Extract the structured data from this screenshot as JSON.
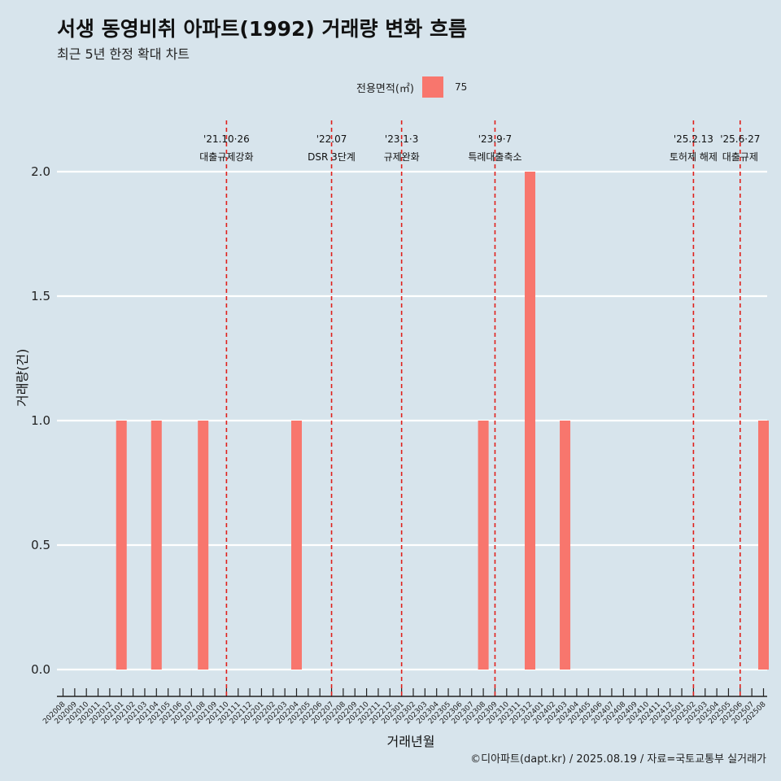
{
  "header": {
    "title": "서생 동영비취 아파트(1992) 거래량 변화 흐름",
    "subtitle": "최근 5년 한정 확대 차트"
  },
  "legend": {
    "title": "전용면적(㎡)",
    "items": [
      {
        "label": "75",
        "color": "#f8766d"
      }
    ]
  },
  "caption": "©디아파트(dapt.kr) / 2025.08.19 / 자료=국토교통부 실거래가",
  "chart_data": {
    "type": "bar",
    "title": "서생 동영비취 아파트(1992) 거래량 변화 흐름",
    "subtitle": "최근 5년 한정 확대 차트",
    "xlabel": "거래년월",
    "ylabel": "거래량(건)",
    "ylim": [
      0,
      2
    ],
    "yticks": [
      "0.0",
      "0.5",
      "1.0",
      "1.5",
      "2.0"
    ],
    "grid": true,
    "legend_position": "top",
    "categories": [
      "202008",
      "202009",
      "202010",
      "202011",
      "202012",
      "202101",
      "202102",
      "202103",
      "202104",
      "202105",
      "202106",
      "202107",
      "202108",
      "202109",
      "202110",
      "202111",
      "202112",
      "202201",
      "202202",
      "202203",
      "202204",
      "202205",
      "202206",
      "202207",
      "202208",
      "202209",
      "202210",
      "202211",
      "202212",
      "202301",
      "202302",
      "202303",
      "202304",
      "202305",
      "202306",
      "202307",
      "202308",
      "202309",
      "202310",
      "202311",
      "202312",
      "202401",
      "202402",
      "202403",
      "202404",
      "202405",
      "202406",
      "202407",
      "202408",
      "202409",
      "202410",
      "202411",
      "202412",
      "202501",
      "202502",
      "202503",
      "202504",
      "202505",
      "202506",
      "202507",
      "202508"
    ],
    "series": [
      {
        "name": "75",
        "color": "#f8766d",
        "values": [
          0,
          0,
          0,
          0,
          0,
          1,
          0,
          0,
          1,
          0,
          0,
          0,
          1,
          0,
          0,
          0,
          0,
          0,
          0,
          0,
          1,
          0,
          0,
          0,
          0,
          0,
          0,
          0,
          0,
          0,
          0,
          0,
          0,
          0,
          0,
          0,
          1,
          0,
          0,
          0,
          2,
          0,
          0,
          1,
          0,
          0,
          0,
          0,
          0,
          0,
          0,
          0,
          0,
          0,
          0,
          0,
          0,
          0,
          0,
          0,
          1
        ]
      }
    ],
    "annotations": [
      {
        "x": "202110",
        "line1": "'21.10·26",
        "line2": "대출규제강화"
      },
      {
        "x": "202207",
        "line1": "'22.07",
        "line2": "DSR 3단계"
      },
      {
        "x": "202301",
        "line1": "'23.1·3",
        "line2": "규제완화"
      },
      {
        "x": "202309",
        "line1": "'23.9·7",
        "line2": "특례대출축소"
      },
      {
        "x": "202502",
        "line1": "'25.2.13",
        "line2": "토허제 해제"
      },
      {
        "x": "202506",
        "line1": "'25.6·27",
        "line2": "대출규제"
      }
    ]
  }
}
